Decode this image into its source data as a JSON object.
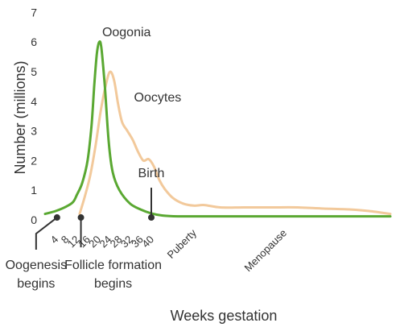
{
  "chart_data": {
    "type": "line",
    "title": "",
    "xlabel": "Weeks gestation",
    "ylabel": "Number (millions)",
    "ylim": [
      0,
      7
    ],
    "yticks": [
      0,
      1,
      2,
      3,
      4,
      5,
      6,
      7
    ],
    "xticks": [
      "4",
      "8",
      "12",
      "16",
      "20",
      "24",
      "28",
      "32",
      "36",
      "40"
    ],
    "xlim": [
      0,
      130
    ],
    "grid": false,
    "legend": "none",
    "life_labels": [
      {
        "label": "Puberty",
        "x": 56
      },
      {
        "label": "Menopause",
        "x": 90
      }
    ],
    "series": [
      {
        "name": "Oogonia",
        "color": "#5aa832",
        "label_at": [
          21.5,
          6.2
        ],
        "points": [
          [
            0,
            0.2
          ],
          [
            4,
            0.3
          ],
          [
            8,
            0.45
          ],
          [
            10.5,
            0.6
          ],
          [
            12,
            0.85
          ],
          [
            14,
            1.25
          ],
          [
            16,
            2.0
          ],
          [
            17.5,
            3.2
          ],
          [
            18.5,
            4.5
          ],
          [
            19.5,
            5.6
          ],
          [
            20.4,
            6.0
          ],
          [
            21.2,
            5.8
          ],
          [
            22.5,
            4.5
          ],
          [
            24,
            2.6
          ],
          [
            25.5,
            1.6
          ],
          [
            28,
            1.0
          ],
          [
            32,
            0.55
          ],
          [
            36,
            0.35
          ],
          [
            40,
            0.22
          ],
          [
            44,
            0.15
          ],
          [
            50,
            0.12
          ],
          [
            70,
            0.12
          ],
          [
            100,
            0.12
          ],
          [
            130,
            0.12
          ]
        ]
      },
      {
        "name": "Oocytes",
        "color": "#f2c99b",
        "label_at": [
          33.5,
          4.0
        ],
        "points": [
          [
            13,
            0.2
          ],
          [
            15,
            0.8
          ],
          [
            17,
            1.5
          ],
          [
            19,
            2.5
          ],
          [
            21,
            3.7
          ],
          [
            23,
            4.6
          ],
          [
            24.5,
            5.0
          ],
          [
            26,
            4.7
          ],
          [
            27.5,
            3.9
          ],
          [
            29,
            3.3
          ],
          [
            31,
            3.0
          ],
          [
            33,
            2.7
          ],
          [
            35,
            2.3
          ],
          [
            37,
            2.0
          ],
          [
            39,
            2.05
          ],
          [
            41,
            1.8
          ],
          [
            43,
            1.35
          ],
          [
            45,
            1.05
          ],
          [
            48,
            0.75
          ],
          [
            52,
            0.55
          ],
          [
            56,
            0.48
          ],
          [
            60,
            0.5
          ],
          [
            66,
            0.42
          ],
          [
            75,
            0.42
          ],
          [
            85,
            0.42
          ],
          [
            95,
            0.42
          ],
          [
            105,
            0.38
          ],
          [
            115,
            0.35
          ],
          [
            122,
            0.3
          ],
          [
            130,
            0.2
          ]
        ]
      }
    ],
    "markers": [
      {
        "label": "Oogenesis begins",
        "x": 4.5,
        "y": 0.08,
        "leader": "left-down"
      },
      {
        "label": "Follicle formation begins",
        "x": 13.5,
        "y": 0.08,
        "leader": "down"
      },
      {
        "label": "Birth",
        "x": 40,
        "y": 0.08,
        "leader": "up"
      }
    ]
  }
}
